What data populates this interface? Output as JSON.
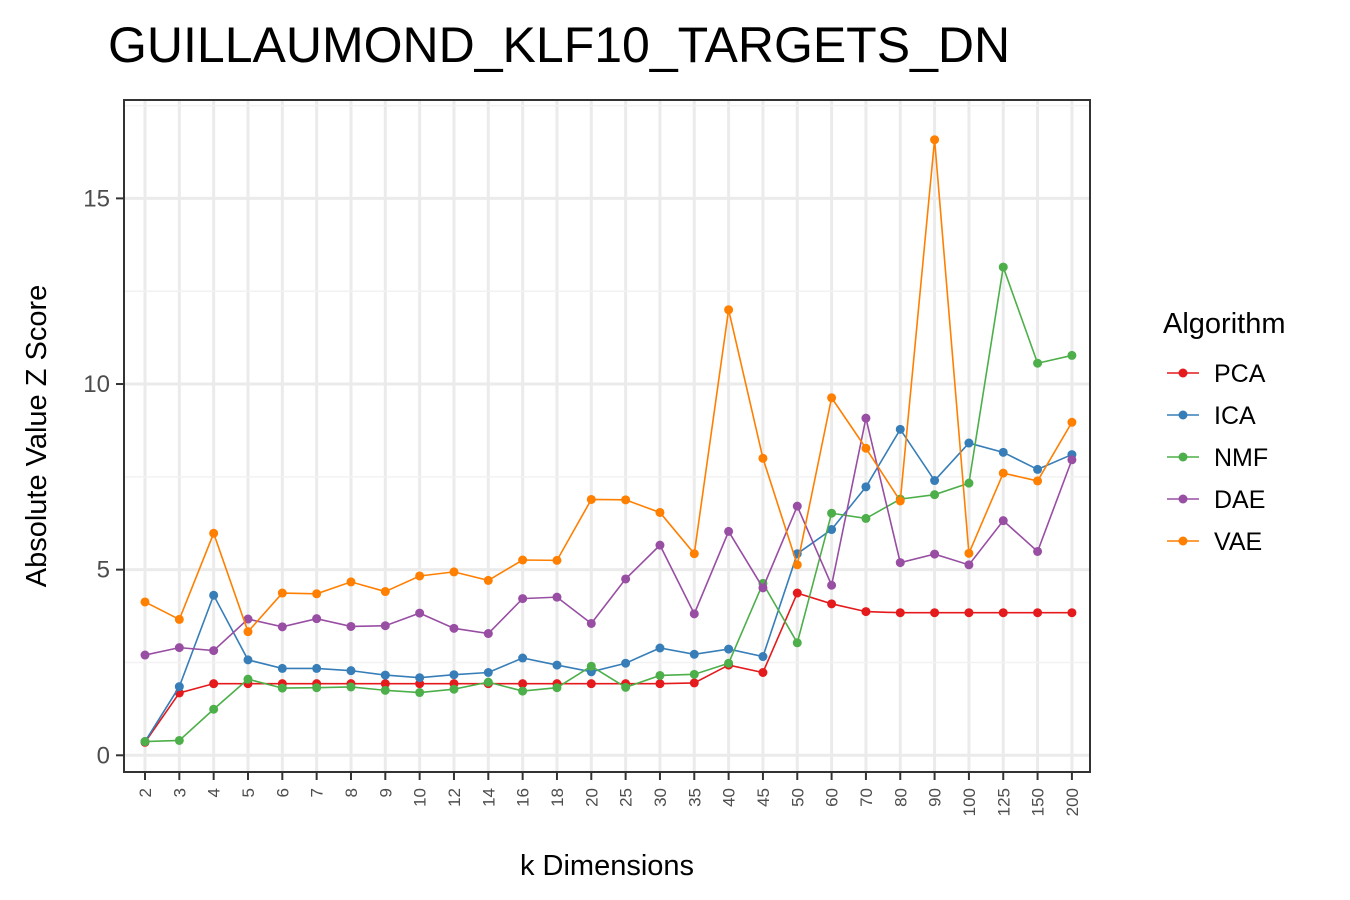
{
  "chart_data": {
    "type": "line",
    "title": "GUILLAUMOND_KLF10_TARGETS_DN",
    "xlabel": "k Dimensions",
    "ylabel": "Absolute Value Z Score",
    "categories": [
      "2",
      "3",
      "4",
      "5",
      "6",
      "7",
      "8",
      "9",
      "10",
      "12",
      "14",
      "16",
      "18",
      "20",
      "25",
      "30",
      "35",
      "40",
      "45",
      "50",
      "60",
      "70",
      "80",
      "90",
      "100",
      "125",
      "150",
      "200"
    ],
    "yticks": [
      0,
      5,
      10,
      15
    ],
    "ylim": [
      -0.45,
      17.65
    ],
    "grid": true,
    "legend_title": "Algorithm",
    "legend_position": "right",
    "series": [
      {
        "name": "PCA",
        "color": "#E41A1C",
        "values": [
          0.35,
          1.68,
          1.93,
          1.93,
          1.93,
          1.93,
          1.93,
          1.93,
          1.93,
          1.93,
          1.93,
          1.93,
          1.93,
          1.93,
          1.93,
          1.93,
          1.95,
          2.43,
          2.23,
          4.37,
          4.08,
          3.87,
          3.84,
          3.84,
          3.84,
          3.84,
          3.84,
          3.84
        ]
      },
      {
        "name": "ICA",
        "color": "#377EB8",
        "values": [
          0.37,
          1.85,
          4.31,
          2.57,
          2.34,
          2.34,
          2.28,
          2.16,
          2.09,
          2.17,
          2.23,
          2.62,
          2.43,
          2.25,
          2.48,
          2.89,
          2.72,
          2.86,
          2.66,
          5.43,
          6.08,
          7.23,
          8.78,
          7.4,
          8.41,
          8.16,
          7.7,
          8.1
        ]
      },
      {
        "name": "NMF",
        "color": "#4DAF4A",
        "values": [
          0.37,
          0.4,
          1.24,
          2.05,
          1.81,
          1.82,
          1.84,
          1.75,
          1.69,
          1.78,
          1.97,
          1.73,
          1.82,
          2.4,
          1.83,
          2.15,
          2.18,
          2.48,
          4.63,
          3.03,
          6.52,
          6.38,
          6.9,
          7.02,
          7.33,
          13.15,
          10.56,
          10.77
        ]
      },
      {
        "name": "DAE",
        "color": "#984EA3",
        "values": [
          2.7,
          2.9,
          2.82,
          3.67,
          3.46,
          3.68,
          3.47,
          3.49,
          3.83,
          3.42,
          3.28,
          4.22,
          4.26,
          3.55,
          4.75,
          5.66,
          3.81,
          6.03,
          4.51,
          6.71,
          4.58,
          9.08,
          5.19,
          5.42,
          5.13,
          6.32,
          5.49,
          7.96
        ]
      },
      {
        "name": "VAE",
        "color": "#FF7F00",
        "values": [
          4.13,
          3.66,
          5.98,
          3.33,
          4.37,
          4.35,
          4.67,
          4.41,
          4.83,
          4.94,
          4.71,
          5.26,
          5.25,
          6.89,
          6.88,
          6.54,
          5.43,
          12.0,
          8.0,
          5.13,
          9.63,
          8.27,
          6.85,
          16.58,
          5.44,
          7.6,
          7.39,
          8.97
        ]
      }
    ]
  }
}
